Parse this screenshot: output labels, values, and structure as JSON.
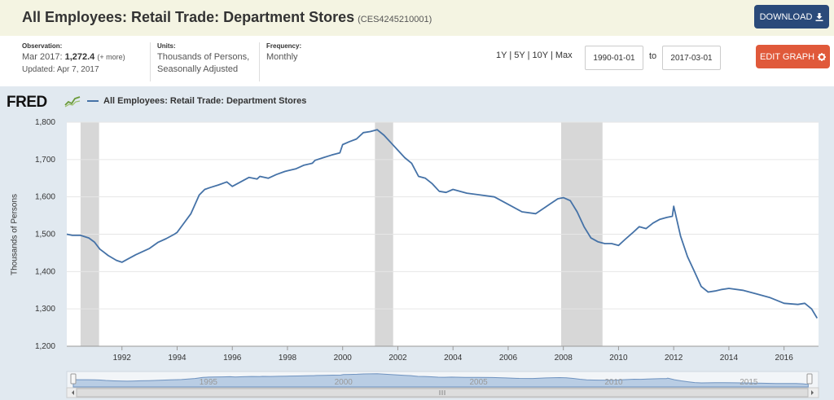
{
  "header": {
    "title": "All Employees: Retail Trade: Department Stores",
    "series_id": "(CES4245210001)",
    "download_label": "DOWNLOAD",
    "edit_label": "EDIT GRAPH"
  },
  "meta": {
    "observation_label": "Observation:",
    "observation_date": "Mar 2017:",
    "observation_value": "1,272.4",
    "observation_more": "(+ more)",
    "updated": "Updated: Apr 7, 2017",
    "units_label": "Units:",
    "units_line1": "Thousands of Persons,",
    "units_line2": "Seasonally Adjusted",
    "frequency_label": "Frequency:",
    "frequency_value": "Monthly"
  },
  "range": {
    "one_year": "1Y",
    "five_year": "5Y",
    "ten_year": "10Y",
    "max": "Max",
    "separator": "|",
    "start": "1990-01-01",
    "to": "to",
    "end": "2017-03-01"
  },
  "logo": {
    "text": "FRED"
  },
  "colors": {
    "series": "#4572a7",
    "recession": "#d7d7d7",
    "accent_download": "#2a4a7a",
    "accent_edit": "#e0593a"
  },
  "chart_data": {
    "type": "line",
    "title": "",
    "xlabel": "",
    "ylabel": "Thousands of Persons",
    "ylim": [
      1200,
      1800
    ],
    "xlim": [
      1990.0,
      2017.25
    ],
    "yticks": [
      1200,
      1300,
      1400,
      1500,
      1600,
      1700,
      1800
    ],
    "ytick_labels": [
      "1,200",
      "1,300",
      "1,400",
      "1,500",
      "1,600",
      "1,700",
      "1,800"
    ],
    "xticks": [
      1992,
      1994,
      1996,
      1998,
      2000,
      2002,
      2004,
      2006,
      2008,
      2010,
      2012,
      2014,
      2016
    ],
    "xtick_labels": [
      "1992",
      "1994",
      "1996",
      "1998",
      "2000",
      "2002",
      "2004",
      "2006",
      "2008",
      "2010",
      "2012",
      "2014",
      "2016"
    ],
    "grid": true,
    "legend": "top-left",
    "recessions": [
      [
        1990.5,
        1991.17
      ],
      [
        2001.17,
        2001.83
      ],
      [
        2007.92,
        2009.42
      ]
    ],
    "navigator_labels": [
      "1995",
      "2000",
      "2005",
      "2010",
      "2015"
    ],
    "series": [
      {
        "name": "All Employees: Retail Trade: Department Stores",
        "x": [
          1990.0,
          1990.2,
          1990.5,
          1990.8,
          1991.0,
          1991.2,
          1991.5,
          1991.8,
          1992.0,
          1992.2,
          1992.5,
          1992.8,
          1993.0,
          1993.3,
          1993.6,
          1993.9,
          1994.0,
          1994.2,
          1994.5,
          1994.8,
          1995.0,
          1995.2,
          1995.5,
          1995.8,
          1996.0,
          1996.3,
          1996.6,
          1996.9,
          1997.0,
          1997.3,
          1997.6,
          1997.9,
          1998.0,
          1998.3,
          1998.6,
          1998.9,
          1999.0,
          1999.3,
          1999.6,
          1999.9,
          2000.0,
          2000.25,
          2000.5,
          2000.75,
          2001.0,
          2001.25,
          2001.5,
          2001.75,
          2002.0,
          2002.25,
          2002.5,
          2002.75,
          2003.0,
          2003.25,
          2003.5,
          2003.75,
          2004.0,
          2004.5,
          2005.0,
          2005.5,
          2006.0,
          2006.5,
          2007.0,
          2007.5,
          2007.8,
          2008.0,
          2008.25,
          2008.5,
          2008.75,
          2009.0,
          2009.25,
          2009.5,
          2009.75,
          2010.0,
          2010.25,
          2010.5,
          2010.75,
          2011.0,
          2011.25,
          2011.5,
          2011.75,
          2011.95,
          2012.0,
          2012.25,
          2012.5,
          2012.75,
          2013.0,
          2013.25,
          2013.5,
          2013.75,
          2014.0,
          2014.5,
          2015.0,
          2015.5,
          2016.0,
          2016.5,
          2016.75,
          2017.0,
          2017.2
        ],
        "y": [
          1500,
          1497,
          1497,
          1490,
          1479,
          1460,
          1443,
          1430,
          1425,
          1433,
          1445,
          1455,
          1462,
          1478,
          1488,
          1500,
          1505,
          1525,
          1555,
          1605,
          1620,
          1625,
          1632,
          1640,
          1628,
          1640,
          1652,
          1648,
          1655,
          1650,
          1660,
          1668,
          1670,
          1675,
          1685,
          1690,
          1698,
          1705,
          1712,
          1718,
          1740,
          1748,
          1755,
          1772,
          1775,
          1780,
          1765,
          1745,
          1725,
          1705,
          1690,
          1655,
          1650,
          1635,
          1615,
          1612,
          1620,
          1610,
          1605,
          1600,
          1580,
          1560,
          1555,
          1580,
          1595,
          1598,
          1590,
          1560,
          1520,
          1490,
          1480,
          1475,
          1475,
          1470,
          1487,
          1503,
          1520,
          1515,
          1530,
          1540,
          1545,
          1548,
          1575,
          1495,
          1440,
          1400,
          1360,
          1345,
          1348,
          1352,
          1355,
          1350,
          1340,
          1330,
          1315,
          1312,
          1315,
          1300,
          1275
        ]
      }
    ]
  }
}
